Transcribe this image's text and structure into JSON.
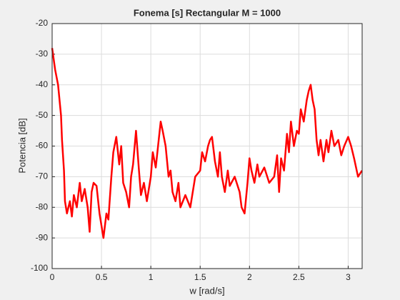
{
  "chart_data": {
    "type": "line",
    "title": "Fonema [s] Rectangular M = 1000",
    "xlabel": "w [rad/s]",
    "ylabel": "Potencia [dB]",
    "x": [
      0,
      0.03,
      0.06,
      0.09,
      0.1,
      0.12,
      0.13,
      0.15,
      0.18,
      0.2,
      0.22,
      0.25,
      0.28,
      0.3,
      0.33,
      0.36,
      0.38,
      0.4,
      0.42,
      0.45,
      0.48,
      0.5,
      0.52,
      0.55,
      0.57,
      0.6,
      0.62,
      0.65,
      0.68,
      0.7,
      0.72,
      0.75,
      0.78,
      0.8,
      0.82,
      0.85,
      0.88,
      0.9,
      0.93,
      0.96,
      1.0,
      1.02,
      1.05,
      1.08,
      1.1,
      1.12,
      1.15,
      1.18,
      1.2,
      1.22,
      1.25,
      1.28,
      1.3,
      1.35,
      1.4,
      1.45,
      1.5,
      1.52,
      1.55,
      1.58,
      1.6,
      1.62,
      1.65,
      1.68,
      1.7,
      1.72,
      1.75,
      1.78,
      1.8,
      1.85,
      1.9,
      1.92,
      1.95,
      1.98,
      2.0,
      2.02,
      2.05,
      2.08,
      2.1,
      2.15,
      2.2,
      2.25,
      2.28,
      2.3,
      2.32,
      2.35,
      2.38,
      2.4,
      2.42,
      2.45,
      2.48,
      2.5,
      2.52,
      2.55,
      2.58,
      2.6,
      2.62,
      2.64,
      2.66,
      2.68,
      2.7,
      2.72,
      2.75,
      2.78,
      2.8,
      2.83,
      2.86,
      2.9,
      2.93,
      2.96,
      3.0,
      3.03,
      3.06,
      3.1,
      3.14
    ],
    "series": [
      {
        "name": "Potencia",
        "color": "#ff0000",
        "values": [
          -28,
          -35,
          -40,
          -50,
          -58,
          -68,
          -78,
          -82,
          -78,
          -83,
          -76,
          -80,
          -72,
          -78,
          -74,
          -80,
          -88,
          -75,
          -72,
          -73,
          -82,
          -86,
          -90,
          -82,
          -84,
          -70,
          -62,
          -57,
          -66,
          -60,
          -72,
          -75,
          -80,
          -70,
          -66,
          -55,
          -68,
          -76,
          -72,
          -78,
          -70,
          -62,
          -67,
          -58,
          -52,
          -55,
          -60,
          -70,
          -68,
          -75,
          -78,
          -72,
          -80,
          -76,
          -80,
          -70,
          -68,
          -62,
          -65,
          -60,
          -58,
          -57,
          -65,
          -70,
          -62,
          -70,
          -75,
          -68,
          -73,
          -70,
          -75,
          -80,
          -82,
          -72,
          -64,
          -68,
          -72,
          -66,
          -70,
          -67,
          -72,
          -70,
          -63,
          -75,
          -64,
          -68,
          -56,
          -62,
          -52,
          -60,
          -55,
          -56,
          -48,
          -52,
          -45,
          -42,
          -40,
          -45,
          -48,
          -58,
          -63,
          -58,
          -65,
          -58,
          -62,
          -55,
          -60,
          -58,
          -63,
          -60,
          -57,
          -60,
          -64,
          -70,
          -68
        ]
      }
    ],
    "xlim": [
      0,
      3.1416
    ],
    "xticks": [
      0,
      0.5,
      1,
      1.5,
      2,
      2.5,
      3
    ],
    "ylim": [
      -100,
      -20
    ],
    "yticks": [
      -100,
      -90,
      -80,
      -70,
      -60,
      -50,
      -40,
      -30,
      -20
    ],
    "grid": true
  }
}
